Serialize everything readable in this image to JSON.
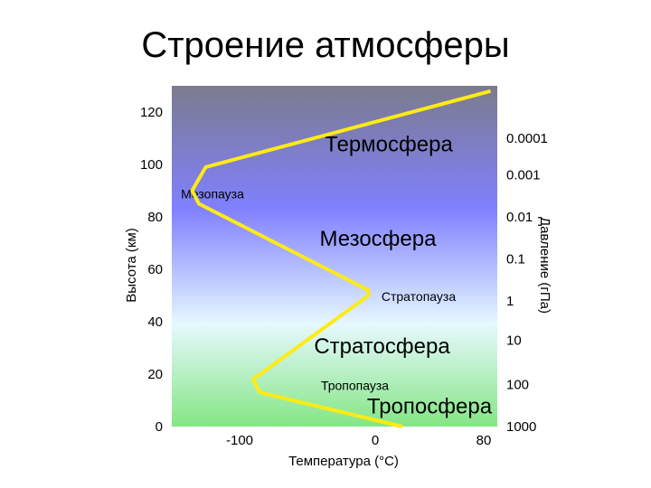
{
  "slide": {
    "title": "Строение атмосферы"
  },
  "chart_data": {
    "type": "line",
    "title": "",
    "xlabel": "Температура (°C)",
    "ylabel": "Высота (км)",
    "y2label": "Давление (гПа)",
    "xlim": [
      -150,
      90
    ],
    "ylim": [
      0,
      130
    ],
    "x_ticks": [
      "-100",
      "0",
      "80"
    ],
    "x_tick_values": [
      -100,
      0,
      80
    ],
    "y_ticks": [
      "0",
      "20",
      "40",
      "60",
      "80",
      "100",
      "120"
    ],
    "y_tick_values": [
      0,
      20,
      40,
      60,
      80,
      100,
      120
    ],
    "pressure_ticks": [
      "0.0001",
      "0.001",
      "0.01",
      "0.1",
      "1",
      "10",
      "100",
      "1000"
    ],
    "pressure_tick_heights_km": [
      110,
      96,
      80,
      64,
      48,
      33,
      16,
      0
    ],
    "series": [
      {
        "values": [
          {
            "x": 20,
            "y": 0
          },
          {
            "x": -85,
            "y": 13
          },
          {
            "x": -90,
            "y": 18
          },
          {
            "x": -5,
            "y": 50
          },
          {
            "x": -5,
            "y": 52
          },
          {
            "x": -130,
            "y": 85
          },
          {
            "x": -135,
            "y": 90
          },
          {
            "x": -125,
            "y": 99
          },
          {
            "x": 85,
            "y": 128
          }
        ],
        "color": "#ffeb14"
      }
    ],
    "layers": [
      {
        "label": "Термосфера",
        "size": "big",
        "x": 10,
        "y": 105
      },
      {
        "label": "Мезопауза",
        "size": "small",
        "x": -120,
        "y": 87
      },
      {
        "label": "Мезосфера",
        "size": "big",
        "x": 2,
        "y": 69
      },
      {
        "label": "Стратопауза",
        "size": "small",
        "x": 32,
        "y": 48
      },
      {
        "label": "Стратосфера",
        "size": "big",
        "x": 5,
        "y": 28
      },
      {
        "label": "Тропопауза",
        "size": "small",
        "x": -15,
        "y": 14
      },
      {
        "label": "Тропосфера",
        "size": "big",
        "x": 40,
        "y": 5
      }
    ],
    "background_gradient": [
      "#7b7b8e",
      "#8080ff",
      "#e6f8ff",
      "#84e684"
    ],
    "grid": false
  }
}
